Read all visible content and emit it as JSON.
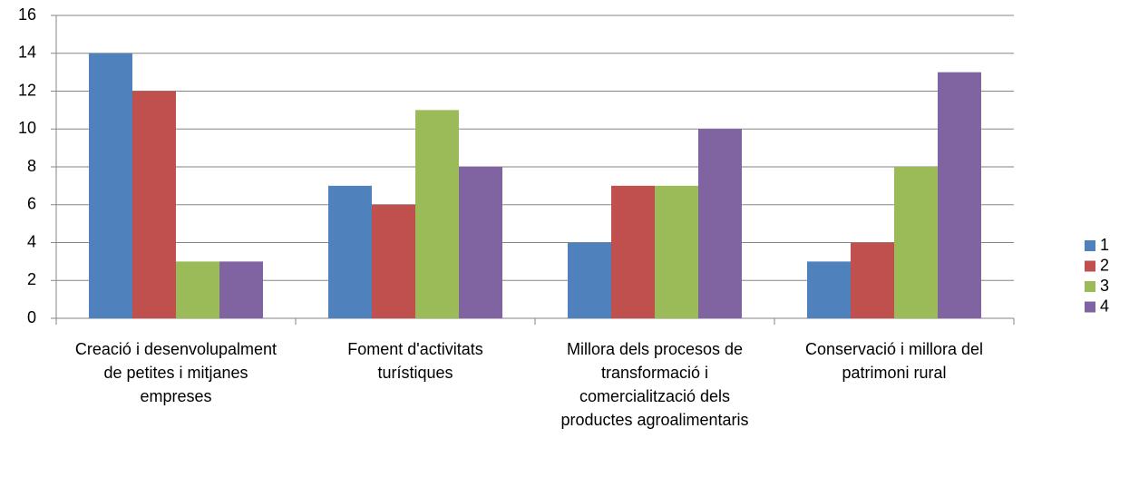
{
  "chart_data": {
    "type": "bar",
    "categories": [
      "Creació i desenvolupalment de petites i mitjanes empreses",
      "Foment d'activitats turístiques",
      "Millora dels procesos de transformació i comercialització dels productes agroalimentaris",
      "Conservació i millora del patrimoni rural"
    ],
    "series": [
      {
        "name": "1",
        "color": "#4f81bd",
        "values": [
          14,
          7,
          4,
          3
        ]
      },
      {
        "name": "2",
        "color": "#c0504d",
        "values": [
          12,
          6,
          7,
          4
        ]
      },
      {
        "name": "3",
        "color": "#9bbb59",
        "values": [
          3,
          11,
          7,
          8
        ]
      },
      {
        "name": "4",
        "color": "#8064a2",
        "values": [
          3,
          8,
          10,
          13
        ]
      }
    ],
    "ylim": [
      0,
      16
    ],
    "yticks": [
      0,
      2,
      4,
      6,
      8,
      10,
      12,
      14,
      16
    ],
    "grid": true,
    "legend": "right"
  }
}
